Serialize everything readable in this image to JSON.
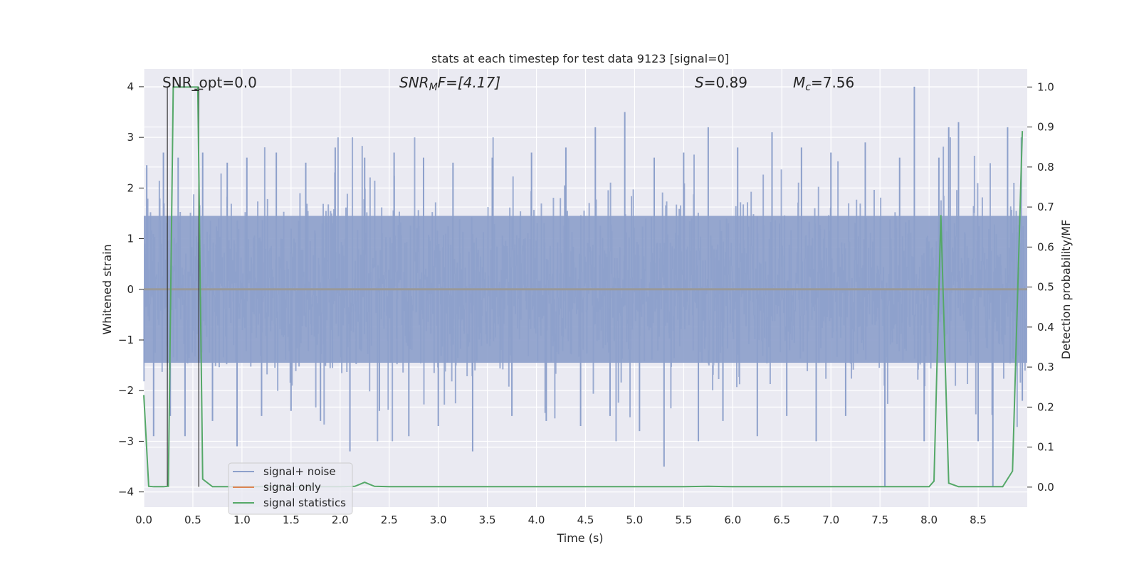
{
  "chart_data": {
    "type": "line",
    "title": "stats at each timestep for test data 9123 [signal=0]",
    "xlabel": "Time (s)",
    "ylabel_left": "Whitened strain",
    "ylabel_right": "Detection probability/MF",
    "xlim": [
      0.0,
      9.0
    ],
    "ylim_left": [
      -4.3,
      4.35
    ],
    "ylim_right": [
      -0.05,
      1.045
    ],
    "xticks": [
      0.0,
      0.5,
      1.0,
      1.5,
      2.0,
      2.5,
      3.0,
      3.5,
      4.0,
      4.5,
      5.0,
      5.5,
      6.0,
      6.5,
      7.0,
      7.5,
      8.0,
      8.5
    ],
    "xtick_labels": [
      "0.0",
      "0.5",
      "1.0",
      "1.5",
      "2.0",
      "2.5",
      "3.0",
      "3.5",
      "4.0",
      "4.5",
      "5.0",
      "5.5",
      "6.0",
      "6.5",
      "7.0",
      "7.5",
      "8.0",
      "8.5"
    ],
    "yticks_left": [
      -4,
      -3,
      -2,
      -1,
      0,
      1,
      2,
      3,
      4
    ],
    "ytick_labels_left": [
      "−4",
      "−3",
      "−2",
      "−1",
      "0",
      "1",
      "2",
      "3",
      "4"
    ],
    "yticks_right": [
      0.0,
      0.1,
      0.2,
      0.3,
      0.4,
      0.5,
      0.6,
      0.7,
      0.8,
      0.9,
      1.0
    ],
    "ytick_labels_right": [
      "0.0",
      "0.1",
      "0.2",
      "0.3",
      "0.4",
      "0.5",
      "0.6",
      "0.7",
      "0.8",
      "0.9",
      "1.0"
    ],
    "grid": true,
    "legend_position": "lower-left",
    "annotations": {
      "snr_opt": "SNR_opt=0.0",
      "snr_mf_sym": "SNR",
      "snr_mf_sub": "M",
      "snr_mf_rest": "F=[4.17]",
      "s_sym": "S",
      "s_rest": "=0.89",
      "mc_sym": "M",
      "mc_sub": "c",
      "mc_rest": "=7.56"
    },
    "series": [
      {
        "name": "signal+ noise",
        "axis": "left",
        "color": "#8da0cb",
        "style": "dense noise, amplitude approx. ±1.5 with spikes to ±4",
        "spikes": [
          {
            "x": 0.03,
            "y": 2.45
          },
          {
            "x": 0.1,
            "y": -2.9
          },
          {
            "x": 0.2,
            "y": 2.7
          },
          {
            "x": 0.27,
            "y": -2.5
          },
          {
            "x": 0.35,
            "y": 2.6
          },
          {
            "x": 0.42,
            "y": -2.9
          },
          {
            "x": 0.6,
            "y": 2.7
          },
          {
            "x": 0.7,
            "y": -2.6
          },
          {
            "x": 0.85,
            "y": 2.5
          },
          {
            "x": 0.95,
            "y": -3.1
          },
          {
            "x": 1.05,
            "y": 2.6
          },
          {
            "x": 1.2,
            "y": -2.5
          },
          {
            "x": 1.35,
            "y": 2.7
          },
          {
            "x": 1.5,
            "y": -2.4
          },
          {
            "x": 1.65,
            "y": 2.5
          },
          {
            "x": 1.8,
            "y": -2.6
          },
          {
            "x": 1.95,
            "y": 2.8
          },
          {
            "x": 2.1,
            "y": -3.2
          },
          {
            "x": 2.25,
            "y": 2.6
          },
          {
            "x": 2.4,
            "y": -2.4
          },
          {
            "x": 2.55,
            "y": 2.7
          },
          {
            "x": 2.7,
            "y": -2.9
          },
          {
            "x": 2.85,
            "y": 2.6
          },
          {
            "x": 3.0,
            "y": -2.7
          },
          {
            "x": 3.15,
            "y": 2.5
          },
          {
            "x": 3.35,
            "y": -3.2
          },
          {
            "x": 3.55,
            "y": 2.6
          },
          {
            "x": 3.75,
            "y": -2.5
          },
          {
            "x": 3.95,
            "y": 2.7
          },
          {
            "x": 4.1,
            "y": -2.6
          },
          {
            "x": 4.3,
            "y": 2.8
          },
          {
            "x": 4.45,
            "y": -2.7
          },
          {
            "x": 4.6,
            "y": 3.2
          },
          {
            "x": 4.75,
            "y": -2.5
          },
          {
            "x": 4.9,
            "y": 3.5
          },
          {
            "x": 5.05,
            "y": -2.8
          },
          {
            "x": 5.2,
            "y": 2.6
          },
          {
            "x": 5.3,
            "y": -3.5
          },
          {
            "x": 5.5,
            "y": 2.7
          },
          {
            "x": 5.65,
            "y": -3.0
          },
          {
            "x": 5.75,
            "y": 3.2
          },
          {
            "x": 5.9,
            "y": -2.6
          },
          {
            "x": 6.05,
            "y": 2.8
          },
          {
            "x": 6.25,
            "y": -2.9
          },
          {
            "x": 6.4,
            "y": 3.1
          },
          {
            "x": 6.55,
            "y": -2.5
          },
          {
            "x": 6.7,
            "y": 2.8
          },
          {
            "x": 6.85,
            "y": -3.0
          },
          {
            "x": 7.0,
            "y": 2.7
          },
          {
            "x": 7.15,
            "y": -2.5
          },
          {
            "x": 7.35,
            "y": 2.9
          },
          {
            "x": 7.55,
            "y": -3.9
          },
          {
            "x": 7.7,
            "y": 2.6
          },
          {
            "x": 7.85,
            "y": 4.0
          },
          {
            "x": 7.95,
            "y": -3.0
          },
          {
            "x": 8.1,
            "y": 2.6
          },
          {
            "x": 8.2,
            "y": 3.2
          },
          {
            "x": 8.3,
            "y": 3.3
          },
          {
            "x": 8.5,
            "y": -3.0
          },
          {
            "x": 8.65,
            "y": -3.9
          },
          {
            "x": 8.8,
            "y": 3.2
          },
          {
            "x": 8.95,
            "y": -2.2
          }
        ]
      },
      {
        "name": "signal only",
        "axis": "left",
        "color": "#dd8452",
        "x": [
          0.0,
          9.0
        ],
        "y": [
          0.0,
          0.0
        ]
      },
      {
        "name": "signal statistics",
        "axis": "right",
        "color": "#55a868",
        "x": [
          0.0,
          0.05,
          0.1,
          0.15,
          0.2,
          0.25,
          0.3,
          0.35,
          0.4,
          0.45,
          0.5,
          0.55,
          0.6,
          0.7,
          0.8,
          1.0,
          1.5,
          2.0,
          2.15,
          2.25,
          2.35,
          2.5,
          3.0,
          4.0,
          5.0,
          5.5,
          5.75,
          6.0,
          7.0,
          7.5,
          8.0,
          8.05,
          8.12,
          8.2,
          8.3,
          8.5,
          8.75,
          8.85,
          8.95
        ],
        "y": [
          0.23,
          0.002,
          0.001,
          0.001,
          0.001,
          0.002,
          1.0,
          1.0,
          1.0,
          1.0,
          1.0,
          1.0,
          0.02,
          0.001,
          0.001,
          0.001,
          0.001,
          0.001,
          0.002,
          0.012,
          0.002,
          0.001,
          0.001,
          0.001,
          0.001,
          0.001,
          0.002,
          0.001,
          0.001,
          0.001,
          0.001,
          0.015,
          0.68,
          0.01,
          0.001,
          0.001,
          0.001,
          0.04,
          0.89
        ]
      }
    ],
    "markers": [
      {
        "name": "vertical-marker-left",
        "x": 0.24,
        "y_top": 4.0,
        "y_bottom": -3.9
      },
      {
        "name": "vertical-marker-right",
        "x": 0.56,
        "y_top": 4.0,
        "y_bottom": -3.9
      }
    ]
  }
}
